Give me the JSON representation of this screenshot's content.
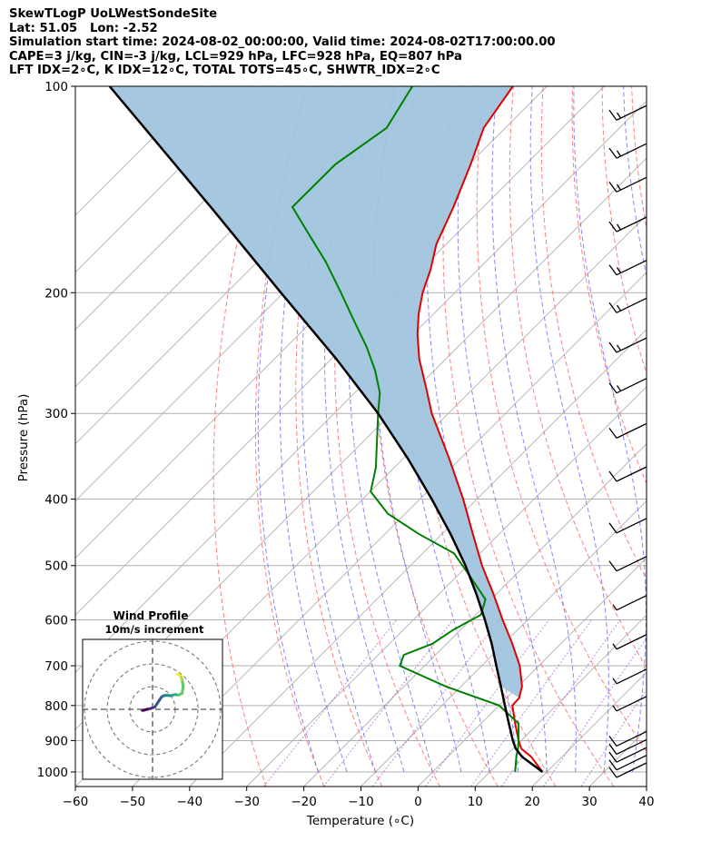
{
  "header": {
    "line1": "SkewTLogP UoLWestSondeSite",
    "line2": "Lat: 51.05   Lon: -2.52",
    "line3": "Simulation start time: 2024-08-02_00:00:00, Valid time: 2024-08-02T17:00:00.00",
    "line4": "CAPE=3 j/kg, CIN=-3 j/kg, LCL=929 hPa, LFC=928 hPa, EQ=807 hPa",
    "line5": "LFT IDX=2∘C, K IDX=12∘C, TOTAL TOTS=45∘C, SHWTR_IDX=2∘C"
  },
  "chart_data": {
    "type": "skew-t log-p",
    "xlabel": "Temperature (∘C)",
    "ylabel": "Pressure (hPa)",
    "xlim": [
      -60,
      40
    ],
    "ylim": [
      1050,
      100
    ],
    "y_scale": "log",
    "x_ticks": [
      "−60",
      "−50",
      "−40",
      "−30",
      "−20",
      "−10",
      "0",
      "10",
      "20",
      "30",
      "40"
    ],
    "y_ticks": [
      "100",
      "200",
      "300",
      "400",
      "500",
      "600",
      "700",
      "800",
      "900",
      "1000"
    ],
    "grid": true,
    "colors": {
      "temperature": "#e00000",
      "dewpoint": "#008000",
      "parcel": "#000000",
      "cape_fill": "#a0c4de",
      "dry_adiabats": "#ff6a6a",
      "moist_adiabats": "#6a6aff",
      "mixing_ratio": "#9b3dc8",
      "isotherms": "#b0b0b0"
    },
    "temperature_profile": {
      "p": [
        1000,
        950,
        925,
        900,
        850,
        800,
        780,
        750,
        700,
        650,
        600,
        550,
        500,
        450,
        400,
        350,
        300,
        275,
        250,
        230,
        215,
        200,
        185,
        170,
        150,
        130,
        115,
        100
      ],
      "t_at_x": [
        21.8,
        19.8,
        18.1,
        17.6,
        17.0,
        16.5,
        17.7,
        18.2,
        17.8,
        16.5,
        14.8,
        13.2,
        11.2,
        9.6,
        7.9,
        5.5,
        2.4,
        1.4,
        0.2,
        -0.1,
        0.1,
        0.8,
        2.2,
        3.2,
        6.2,
        9.2,
        11.5,
        16.6
      ]
    },
    "dewpoint_profile": {
      "p": [
        1000,
        950,
        925,
        900,
        850,
        800,
        750,
        700,
        675,
        650,
        620,
        590,
        560,
        520,
        480,
        450,
        420,
        390,
        360,
        330,
        300,
        280,
        260,
        240,
        220,
        200,
        180,
        165,
        150,
        130,
        115,
        100
      ],
      "t_at_x": [
        17.0,
        17.2,
        17.5,
        17.6,
        17.6,
        14.2,
        4.8,
        -3.2,
        -2.5,
        2.5,
        6.2,
        11.0,
        11.8,
        9.2,
        6.3,
        0.2,
        -5.3,
        -8.3,
        -7.4,
        -7.2,
        -7.0,
        -6.7,
        -7.5,
        -9.0,
        -11.2,
        -13.5,
        -16.2,
        -19.0,
        -22.0,
        -14.5,
        -5.5,
        -1.0
      ]
    },
    "parcel_profile": {
      "p": [
        1000,
        950,
        925,
        900,
        850,
        800,
        750,
        700,
        650,
        600,
        550,
        500,
        450,
        400,
        350,
        300,
        250,
        200,
        150,
        100
      ],
      "t_at_x": [
        21.8,
        18.2,
        17.1,
        16.6,
        15.9,
        15.2,
        14.5,
        13.7,
        12.9,
        11.7,
        10.2,
        8.3,
        5.7,
        2.4,
        -1.7,
        -7.0,
        -14.3,
        -24.0,
        -36.3,
        -54.0
      ]
    },
    "wind_barbs": [
      {
        "p": 1000,
        "speed_kt": 10,
        "dir_deg": 250
      },
      {
        "p": 975,
        "speed_kt": 10,
        "dir_deg": 250
      },
      {
        "p": 950,
        "speed_kt": 10,
        "dir_deg": 255
      },
      {
        "p": 925,
        "speed_kt": 10,
        "dir_deg": 260
      },
      {
        "p": 900,
        "speed_kt": 10,
        "dir_deg": 250
      },
      {
        "p": 800,
        "speed_kt": 5,
        "dir_deg": 260
      },
      {
        "p": 730,
        "speed_kt": 5,
        "dir_deg": 255
      },
      {
        "p": 650,
        "speed_kt": 5,
        "dir_deg": 265
      },
      {
        "p": 570,
        "speed_kt": 5,
        "dir_deg": 250
      },
      {
        "p": 500,
        "speed_kt": 10,
        "dir_deg": 240
      },
      {
        "p": 440,
        "speed_kt": 10,
        "dir_deg": 240
      },
      {
        "p": 370,
        "speed_kt": 10,
        "dir_deg": 240
      },
      {
        "p": 320,
        "speed_kt": 10,
        "dir_deg": 240
      },
      {
        "p": 275,
        "speed_kt": 15,
        "dir_deg": 240
      },
      {
        "p": 240,
        "speed_kt": 15,
        "dir_deg": 240
      },
      {
        "p": 210,
        "speed_kt": 15,
        "dir_deg": 235
      },
      {
        "p": 185,
        "speed_kt": 15,
        "dir_deg": 240
      },
      {
        "p": 160,
        "speed_kt": 15,
        "dir_deg": 240
      },
      {
        "p": 140,
        "speed_kt": 15,
        "dir_deg": 240
      },
      {
        "p": 125,
        "speed_kt": 15,
        "dir_deg": 240
      },
      {
        "p": 110,
        "speed_kt": 15,
        "dir_deg": 240
      }
    ],
    "hodograph": {
      "title": "Wind Profile",
      "subtitle": "10m/s increment",
      "rings_ms": [
        10,
        20,
        30
      ],
      "u": [
        -4.5,
        -3.5,
        -2.5,
        -1.5,
        -0.5,
        1,
        2,
        3,
        4,
        5,
        6,
        7,
        8,
        9,
        10,
        11.5,
        13,
        13.5,
        13,
        12.5,
        12,
        11.5,
        11
      ],
      "v": [
        -0.5,
        -0.3,
        0,
        0.2,
        0.5,
        1,
        2.5,
        4,
        5.5,
        6,
        6.2,
        6.1,
        6,
        6.3,
        6.5,
        6.3,
        7,
        10,
        13,
        14.5,
        15,
        15.5,
        15.3
      ]
    }
  }
}
